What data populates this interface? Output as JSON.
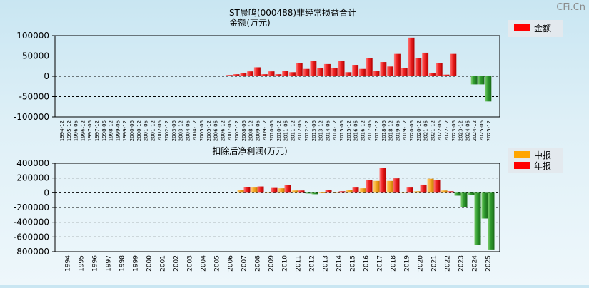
{
  "watermark": "CFi.Cn",
  "chart_data": [
    {
      "type": "bar",
      "title": "ST晨鸣(000488)非经常损益合计",
      "ylabel": "金额(万元)",
      "legend": [
        "金额"
      ],
      "legend_position": "top-right",
      "grid": true,
      "ylim": [
        -100000,
        100000
      ],
      "yticks": [
        100000,
        50000,
        0,
        -50000,
        -100000
      ],
      "categories": [
        "1994-12",
        "1995-12",
        "1996-06",
        "1996-12",
        "1997-06",
        "1997-12",
        "1998-06",
        "1998-12",
        "1999-06",
        "1999-12",
        "2000-06",
        "2000-12",
        "2001-06",
        "2001-12",
        "2002-06",
        "2002-12",
        "2003-06",
        "2003-12",
        "2004-06",
        "2004-12",
        "2005-06",
        "2005-12",
        "2006-06",
        "2006-12",
        "2007-06",
        "2007-12",
        "2008-06",
        "2008-12",
        "2009-06",
        "2009-12",
        "2010-06",
        "2010-12",
        "2011-06",
        "2011-12",
        "2012-06",
        "2012-12",
        "2013-06",
        "2013-12",
        "2014-06",
        "2014-12",
        "2015-06",
        "2015-12",
        "2016-06",
        "2016-12",
        "2017-06",
        "2017-12",
        "2018-06",
        "2018-12",
        "2019-06",
        "2019-12",
        "2020-06",
        "2020-12",
        "2021-06",
        "2021-12",
        "2022-06",
        "2022-12",
        "2023-06",
        "2023-12",
        "2024-06",
        "2024-12",
        "2025-06",
        "2025-12"
      ],
      "values": [
        null,
        null,
        null,
        null,
        null,
        null,
        null,
        null,
        null,
        null,
        null,
        null,
        null,
        null,
        null,
        null,
        null,
        null,
        null,
        null,
        null,
        null,
        null,
        null,
        3000,
        5000,
        8000,
        12000,
        22000,
        5000,
        12000,
        5000,
        14000,
        10000,
        33000,
        18000,
        38000,
        20000,
        30000,
        20000,
        38000,
        10000,
        28000,
        18000,
        44000,
        13000,
        35000,
        24000,
        55000,
        20000,
        95000,
        45000,
        58000,
        8000,
        32000,
        4000,
        55000,
        null,
        null,
        -20000,
        -20000,
        -62000
      ]
    },
    {
      "type": "bar",
      "title": "扣除后净利润(万元)",
      "legend": [
        "中报",
        "年报"
      ],
      "legend_position": "top-right",
      "grid": true,
      "ylim": [
        -800000,
        400000
      ],
      "yticks": [
        400000,
        200000,
        0,
        -200000,
        -400000,
        -600000,
        -800000
      ],
      "categories": [
        "1994",
        "1995",
        "1996",
        "1997",
        "1998",
        "1999",
        "2000",
        "2001",
        "2002",
        "2003",
        "2004",
        "2005",
        "2006",
        "2007",
        "2008",
        "2009",
        "2010",
        "2011",
        "2012",
        "2013",
        "2014",
        "2015",
        "2016",
        "2017",
        "2018",
        "2019",
        "2020",
        "2021",
        "2022",
        "2023",
        "2024",
        "2025"
      ],
      "series": [
        {
          "name": "中报",
          "values": [
            null,
            null,
            null,
            null,
            null,
            null,
            null,
            null,
            null,
            null,
            null,
            null,
            null,
            35000,
            70000,
            10000,
            60000,
            30000,
            -10000,
            5000,
            10000,
            40000,
            60000,
            160000,
            160000,
            10000,
            20000,
            190000,
            30000,
            -40000,
            -30000,
            -350000
          ]
        },
        {
          "name": "年报",
          "values": [
            null,
            null,
            null,
            null,
            null,
            null,
            null,
            null,
            null,
            null,
            null,
            null,
            null,
            80000,
            85000,
            65000,
            100000,
            30000,
            -20000,
            40000,
            20000,
            70000,
            170000,
            340000,
            195000,
            70000,
            110000,
            175000,
            20000,
            -200000,
            -710000,
            -770000
          ]
        }
      ]
    }
  ]
}
